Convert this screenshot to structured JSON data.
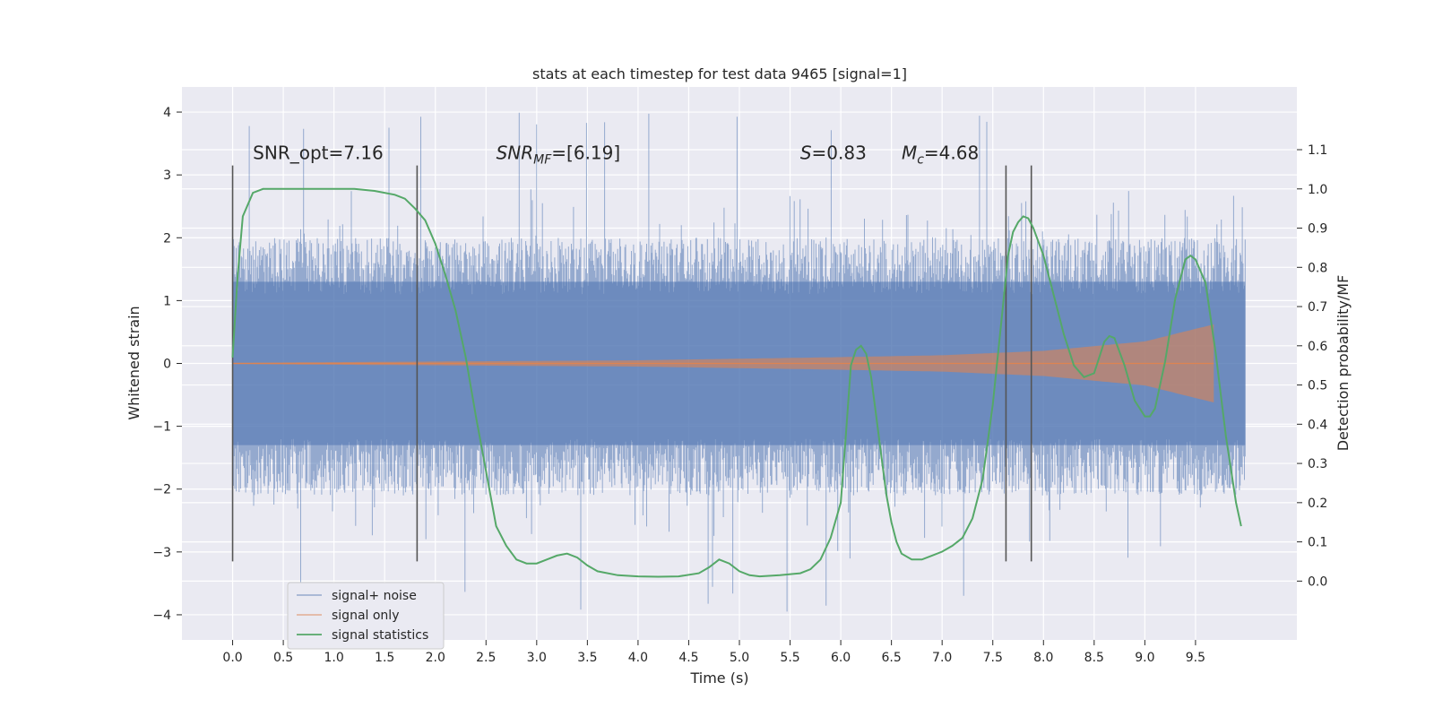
{
  "chart_data": {
    "type": "line",
    "title": "stats at each timestep for test data 9465 [signal=1]",
    "xlabel": "Time (s)",
    "ylabel_left": "Whitened strain",
    "ylabel_right": "Detection probability/MF",
    "xlim": [
      -0.5,
      10.5
    ],
    "ylim_left": [
      -4.4,
      4.4
    ],
    "ylim_right": [
      -0.15,
      1.26
    ],
    "x_ticks": [
      0.0,
      0.5,
      1.0,
      1.5,
      2.0,
      2.5,
      3.0,
      3.5,
      4.0,
      4.5,
      5.0,
      5.5,
      6.0,
      6.5,
      7.0,
      7.5,
      8.0,
      8.5,
      9.0,
      9.5
    ],
    "x_tick_labels": [
      "0.0",
      "0.5",
      "1.0",
      "1.5",
      "2.0",
      "2.5",
      "3.0",
      "3.5",
      "4.0",
      "4.5",
      "5.0",
      "5.5",
      "6.0",
      "6.5",
      "7.0",
      "7.5",
      "8.0",
      "8.5",
      "9.0",
      "9.5"
    ],
    "y_left_ticks": [
      4,
      3,
      2,
      1,
      0,
      -1,
      -2,
      -3,
      -4
    ],
    "y_left_tick_labels": [
      "4",
      "3",
      "2",
      "1",
      "0",
      "−1",
      "−2",
      "−3",
      "−4"
    ],
    "y_right_ticks": [
      1.1,
      1.0,
      0.9,
      0.8,
      0.7,
      0.6,
      0.5,
      0.4,
      0.3,
      0.2,
      0.1,
      0.0
    ],
    "y_right_tick_labels": [
      "1.1",
      "1.0",
      "0.9",
      "0.8",
      "0.7",
      "0.6",
      "0.5",
      "0.4",
      "0.3",
      "0.2",
      "0.1",
      "0.0"
    ],
    "grid": true,
    "legend_position": "lower-left",
    "series": [
      {
        "name": "signal+ noise",
        "axis": "left",
        "style": "noise band",
        "color": "#4c72b0",
        "x_range": [
          0.0,
          9.99
        ],
        "core_amplitude": 1.3,
        "typical_peak": 2.5,
        "max_peak": 4.0,
        "min_trough": -3.95
      },
      {
        "name": "signal only",
        "axis": "left",
        "style": "chirp",
        "color": "#dd8452",
        "x_range": [
          0.0,
          9.68
        ],
        "envelope": [
          [
            0.0,
            0.01
          ],
          [
            4.0,
            0.05
          ],
          [
            6.0,
            0.1
          ],
          [
            7.0,
            0.13
          ],
          [
            8.0,
            0.2
          ],
          [
            9.0,
            0.35
          ],
          [
            9.5,
            0.55
          ],
          [
            9.68,
            0.62
          ]
        ]
      },
      {
        "name": "signal statistics",
        "axis": "right",
        "style": "line",
        "color": "#55a868",
        "x": [
          0.0,
          0.05,
          0.1,
          0.2,
          0.3,
          0.5,
          0.8,
          1.0,
          1.2,
          1.4,
          1.6,
          1.7,
          1.8,
          1.9,
          2.0,
          2.1,
          2.2,
          2.3,
          2.4,
          2.5,
          2.6,
          2.7,
          2.8,
          2.9,
          3.0,
          3.1,
          3.2,
          3.3,
          3.4,
          3.5,
          3.6,
          3.8,
          4.0,
          4.2,
          4.4,
          4.6,
          4.7,
          4.8,
          4.9,
          5.0,
          5.1,
          5.2,
          5.4,
          5.6,
          5.7,
          5.8,
          5.9,
          6.0,
          6.05,
          6.1,
          6.15,
          6.2,
          6.25,
          6.3,
          6.35,
          6.4,
          6.45,
          6.5,
          6.55,
          6.6,
          6.7,
          6.8,
          6.9,
          7.0,
          7.1,
          7.2,
          7.3,
          7.4,
          7.5,
          7.6,
          7.65,
          7.7,
          7.75,
          7.8,
          7.85,
          7.9,
          8.0,
          8.1,
          8.2,
          8.3,
          8.4,
          8.5,
          8.6,
          8.65,
          8.7,
          8.8,
          8.9,
          9.0,
          9.05,
          9.1,
          9.2,
          9.3,
          9.4,
          9.45,
          9.5,
          9.6,
          9.7,
          9.8,
          9.9,
          9.95
        ],
        "y": [
          0.57,
          0.78,
          0.93,
          0.99,
          1.0,
          1.0,
          1.0,
          1.0,
          1.0,
          0.995,
          0.985,
          0.975,
          0.95,
          0.92,
          0.86,
          0.78,
          0.69,
          0.57,
          0.42,
          0.28,
          0.14,
          0.09,
          0.055,
          0.045,
          0.045,
          0.055,
          0.065,
          0.07,
          0.06,
          0.04,
          0.025,
          0.015,
          0.012,
          0.011,
          0.012,
          0.02,
          0.035,
          0.055,
          0.045,
          0.025,
          0.015,
          0.012,
          0.015,
          0.02,
          0.03,
          0.055,
          0.11,
          0.2,
          0.37,
          0.55,
          0.59,
          0.6,
          0.58,
          0.52,
          0.42,
          0.32,
          0.22,
          0.15,
          0.1,
          0.07,
          0.055,
          0.055,
          0.065,
          0.075,
          0.09,
          0.11,
          0.16,
          0.26,
          0.45,
          0.7,
          0.83,
          0.89,
          0.915,
          0.93,
          0.925,
          0.9,
          0.83,
          0.73,
          0.63,
          0.55,
          0.52,
          0.53,
          0.61,
          0.625,
          0.62,
          0.55,
          0.46,
          0.42,
          0.42,
          0.44,
          0.56,
          0.72,
          0.82,
          0.83,
          0.82,
          0.76,
          0.58,
          0.37,
          0.2,
          0.14
        ]
      }
    ],
    "vertical_markers": [
      0.0,
      1.82,
      7.63,
      7.88
    ],
    "vertical_marker_range": [
      -3.15,
      3.15
    ],
    "annotations": [
      {
        "id": "snr-opt",
        "text": "SNR_opt=7.16",
        "x": 0.2,
        "y": 3.25
      },
      {
        "id": "snr-mf",
        "base": "SNR",
        "sub": "MF",
        "rest": "=[6.19]",
        "x": 2.6,
        "y": 3.25
      },
      {
        "id": "overlap",
        "base": "S",
        "rest": "=0.83",
        "x": 5.6,
        "y": 3.25
      },
      {
        "id": "chirp-mass",
        "base": "M",
        "sub": "c",
        "rest": "=4.68",
        "x": 6.6,
        "y": 3.25
      }
    ]
  }
}
